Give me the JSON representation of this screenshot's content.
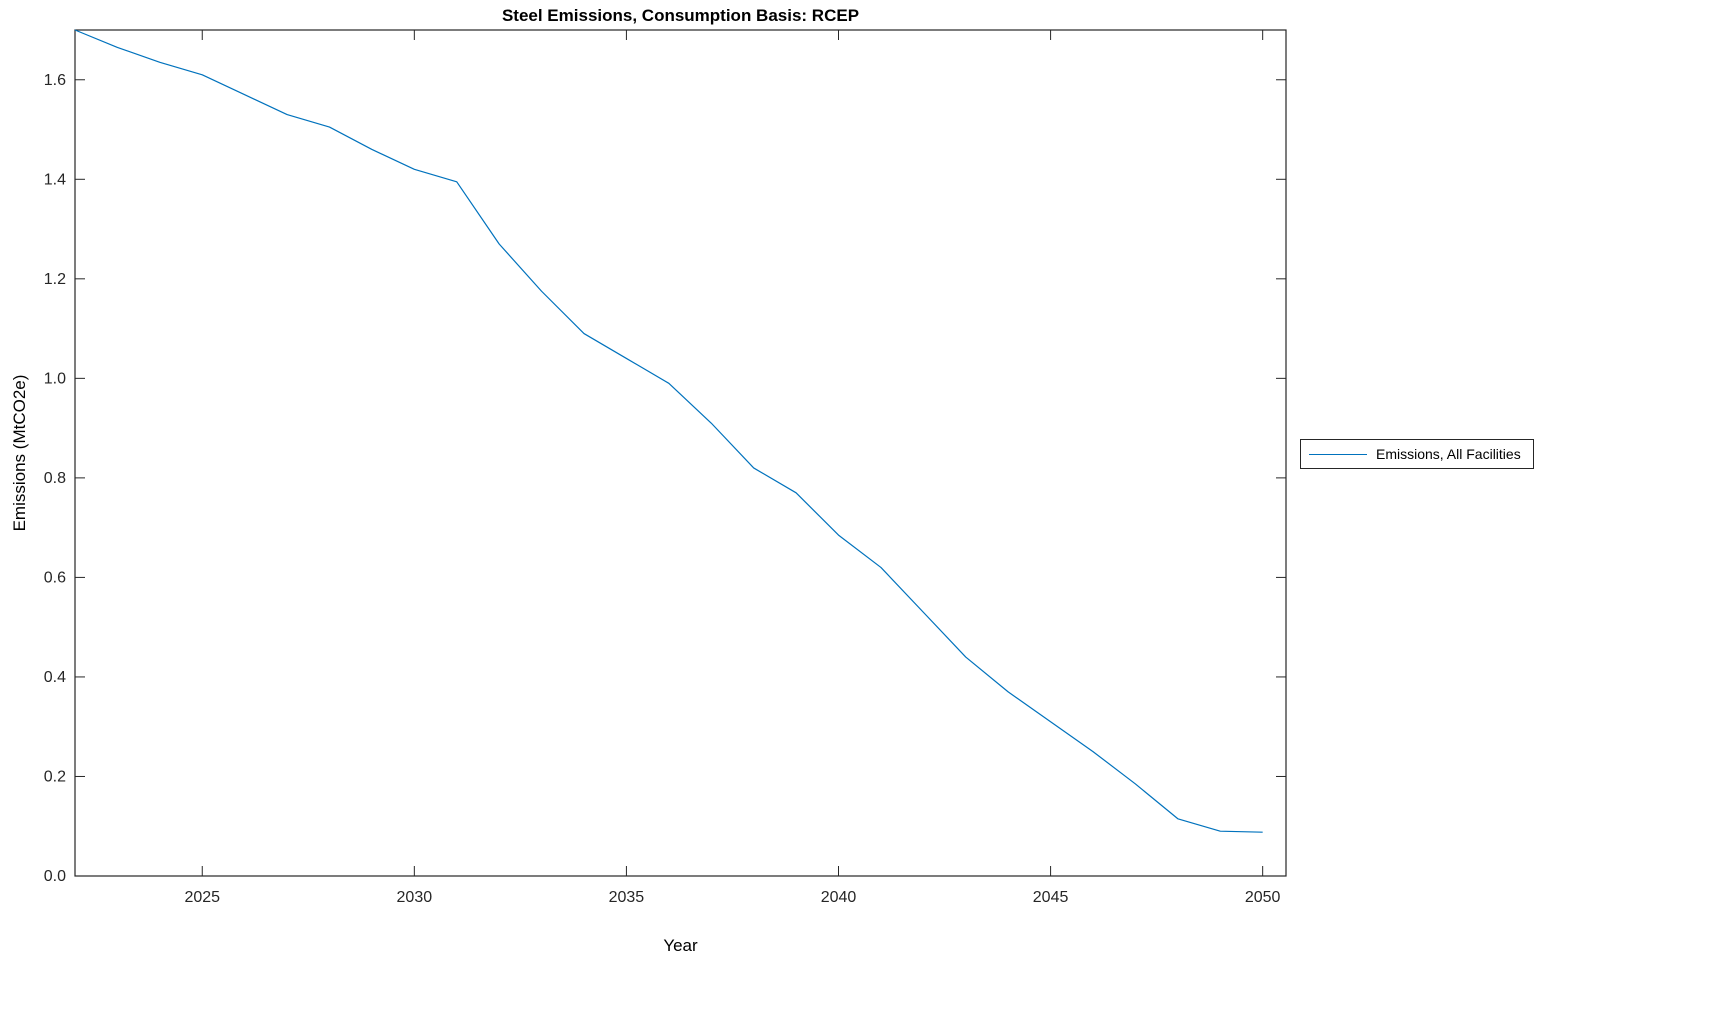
{
  "page": {
    "background": "#ffffff"
  },
  "chart_data": {
    "type": "line",
    "title": "Steel Emissions, Consumption Basis: RCEP",
    "xlabel": "Year",
    "ylabel": "Emissions (MtCO2e)",
    "xlim": [
      2022,
      2050.55
    ],
    "ylim": [
      0,
      1.7
    ],
    "grid": false,
    "axis_color": "#262626",
    "tick_label_color": "#262626",
    "xticks": [
      2025,
      2030,
      2035,
      2040,
      2045,
      2050
    ],
    "xtick_labels": [
      "2025",
      "2030",
      "2035",
      "2040",
      "2045",
      "2050"
    ],
    "yticks": [
      0.0,
      0.2,
      0.4,
      0.6,
      0.8,
      1.0,
      1.2,
      1.4,
      1.6
    ],
    "ytick_labels": [
      "0.0",
      "0.2",
      "0.4",
      "0.6",
      "0.8",
      "1.0",
      "1.2",
      "1.4",
      "1.6"
    ],
    "legend": {
      "position": "right",
      "entries": [
        {
          "label": "Emissions, All Facilities",
          "color": "#0072BD"
        }
      ]
    },
    "series": [
      {
        "name": "Emissions, All Facilities",
        "color": "#0072BD",
        "x": [
          2022,
          2023,
          2024,
          2025,
          2026,
          2027,
          2028,
          2029,
          2030,
          2031,
          2032,
          2033,
          2034,
          2035,
          2036,
          2037,
          2038,
          2039,
          2040,
          2041,
          2042,
          2043,
          2044,
          2045,
          2046,
          2047,
          2048,
          2049,
          2050
        ],
        "y": [
          1.7,
          1.665,
          1.635,
          1.61,
          1.57,
          1.53,
          1.505,
          1.46,
          1.42,
          1.395,
          1.27,
          1.175,
          1.09,
          1.04,
          0.99,
          0.91,
          0.82,
          0.77,
          0.685,
          0.62,
          0.53,
          0.44,
          0.37,
          0.31,
          0.25,
          0.185,
          0.115,
          0.09,
          0.088
        ]
      }
    ]
  }
}
